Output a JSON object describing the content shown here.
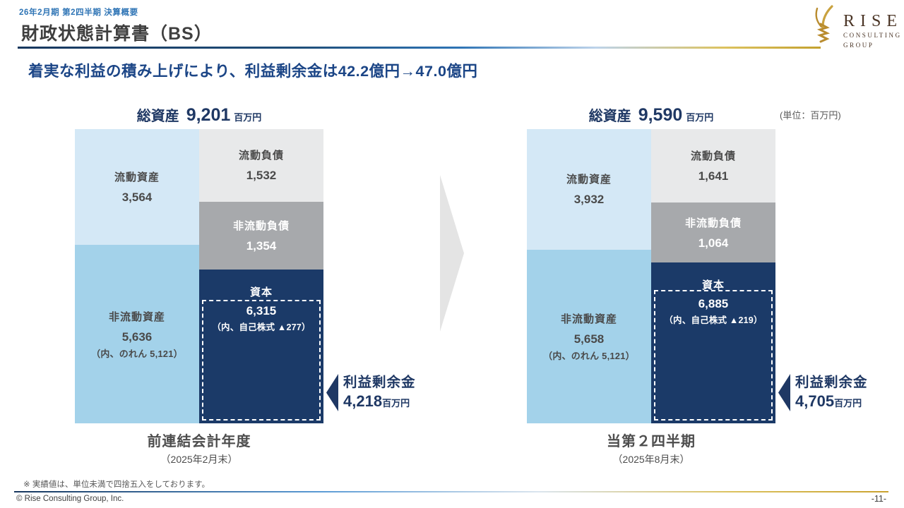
{
  "meta": {
    "eyebrow": "26年2月期 第2四半期 決算概要",
    "title": "財政状態計算書（BS）",
    "subtitle": "着実な利益の積み上げにより、利益剰余金は42.2億円→47.0億円",
    "unit_note": "(単位：百万円)",
    "footnote": "※ 実績値は、単位未満で四捨五入をしております。",
    "copyright": "© Rise Consulting Group, Inc.",
    "page_number": "-11-"
  },
  "logo": {
    "name": "RISE",
    "sub1": "CONSULTING",
    "sub2": "GROUP",
    "icon": "wheat-sheaf-icon",
    "gold": "#b98c2f",
    "brown": "#4b3526"
  },
  "colors": {
    "accent_navy": "#1f3864",
    "subtitle_blue": "#1b4586",
    "eyebrow_blue": "#2e74b5",
    "gold": "#c3a12f"
  },
  "chart_data": {
    "type": "bar",
    "subtype": "stacked-balance-sheet",
    "unit": "百万円",
    "legend_position": "none",
    "grid": false,
    "charts": [
      {
        "period_label": "前連結会計年度",
        "period_sub": "（2025年2月末）",
        "total_label": "総資産",
        "total": 9201,
        "total_unit": "百万円",
        "assets": [
          {
            "label": "流動資産",
            "value": 3564,
            "color": "#d4e8f6",
            "text_color": "#4a4a4a"
          },
          {
            "label": "非流動資産",
            "value": 5636,
            "note": "（内、のれん 5,121）",
            "color": "#a3d2ea",
            "text_color": "#4a4a4a"
          }
        ],
        "liabilities_equity": [
          {
            "label": "流動負債",
            "value": 1532,
            "color": "#e8e9ea",
            "text_color": "#4a4a4a"
          },
          {
            "label": "非流動負債",
            "value": 1354,
            "color": "#a7a9ac",
            "text_color": "#ffffff"
          },
          {
            "label": "資本",
            "value": 6315,
            "note": "（内、自己株式 ▲277）",
            "color": "#1b3a68",
            "text_color": "#ffffff",
            "equity": true
          }
        ],
        "retained_earnings": {
          "label": "利益剰余金",
          "value": 4218,
          "unit": "百万円"
        }
      },
      {
        "period_label": "当第２四半期",
        "period_sub": "（2025年8月末）",
        "total_label": "総資産",
        "total": 9590,
        "total_unit": "百万円",
        "assets": [
          {
            "label": "流動資産",
            "value": 3932,
            "color": "#d4e8f6",
            "text_color": "#4a4a4a"
          },
          {
            "label": "非流動資産",
            "value": 5658,
            "note": "（内、のれん 5,121）",
            "color": "#a3d2ea",
            "text_color": "#4a4a4a"
          }
        ],
        "liabilities_equity": [
          {
            "label": "流動負債",
            "value": 1641,
            "color": "#e8e9ea",
            "text_color": "#4a4a4a"
          },
          {
            "label": "非流動負債",
            "value": 1064,
            "color": "#a7a9ac",
            "text_color": "#ffffff"
          },
          {
            "label": "資本",
            "value": 6885,
            "note": "（内、自己株式 ▲219）",
            "color": "#1b3a68",
            "text_color": "#ffffff",
            "equity": true
          }
        ],
        "retained_earnings": {
          "label": "利益剰余金",
          "value": 4705,
          "unit": "百万円"
        }
      }
    ]
  }
}
